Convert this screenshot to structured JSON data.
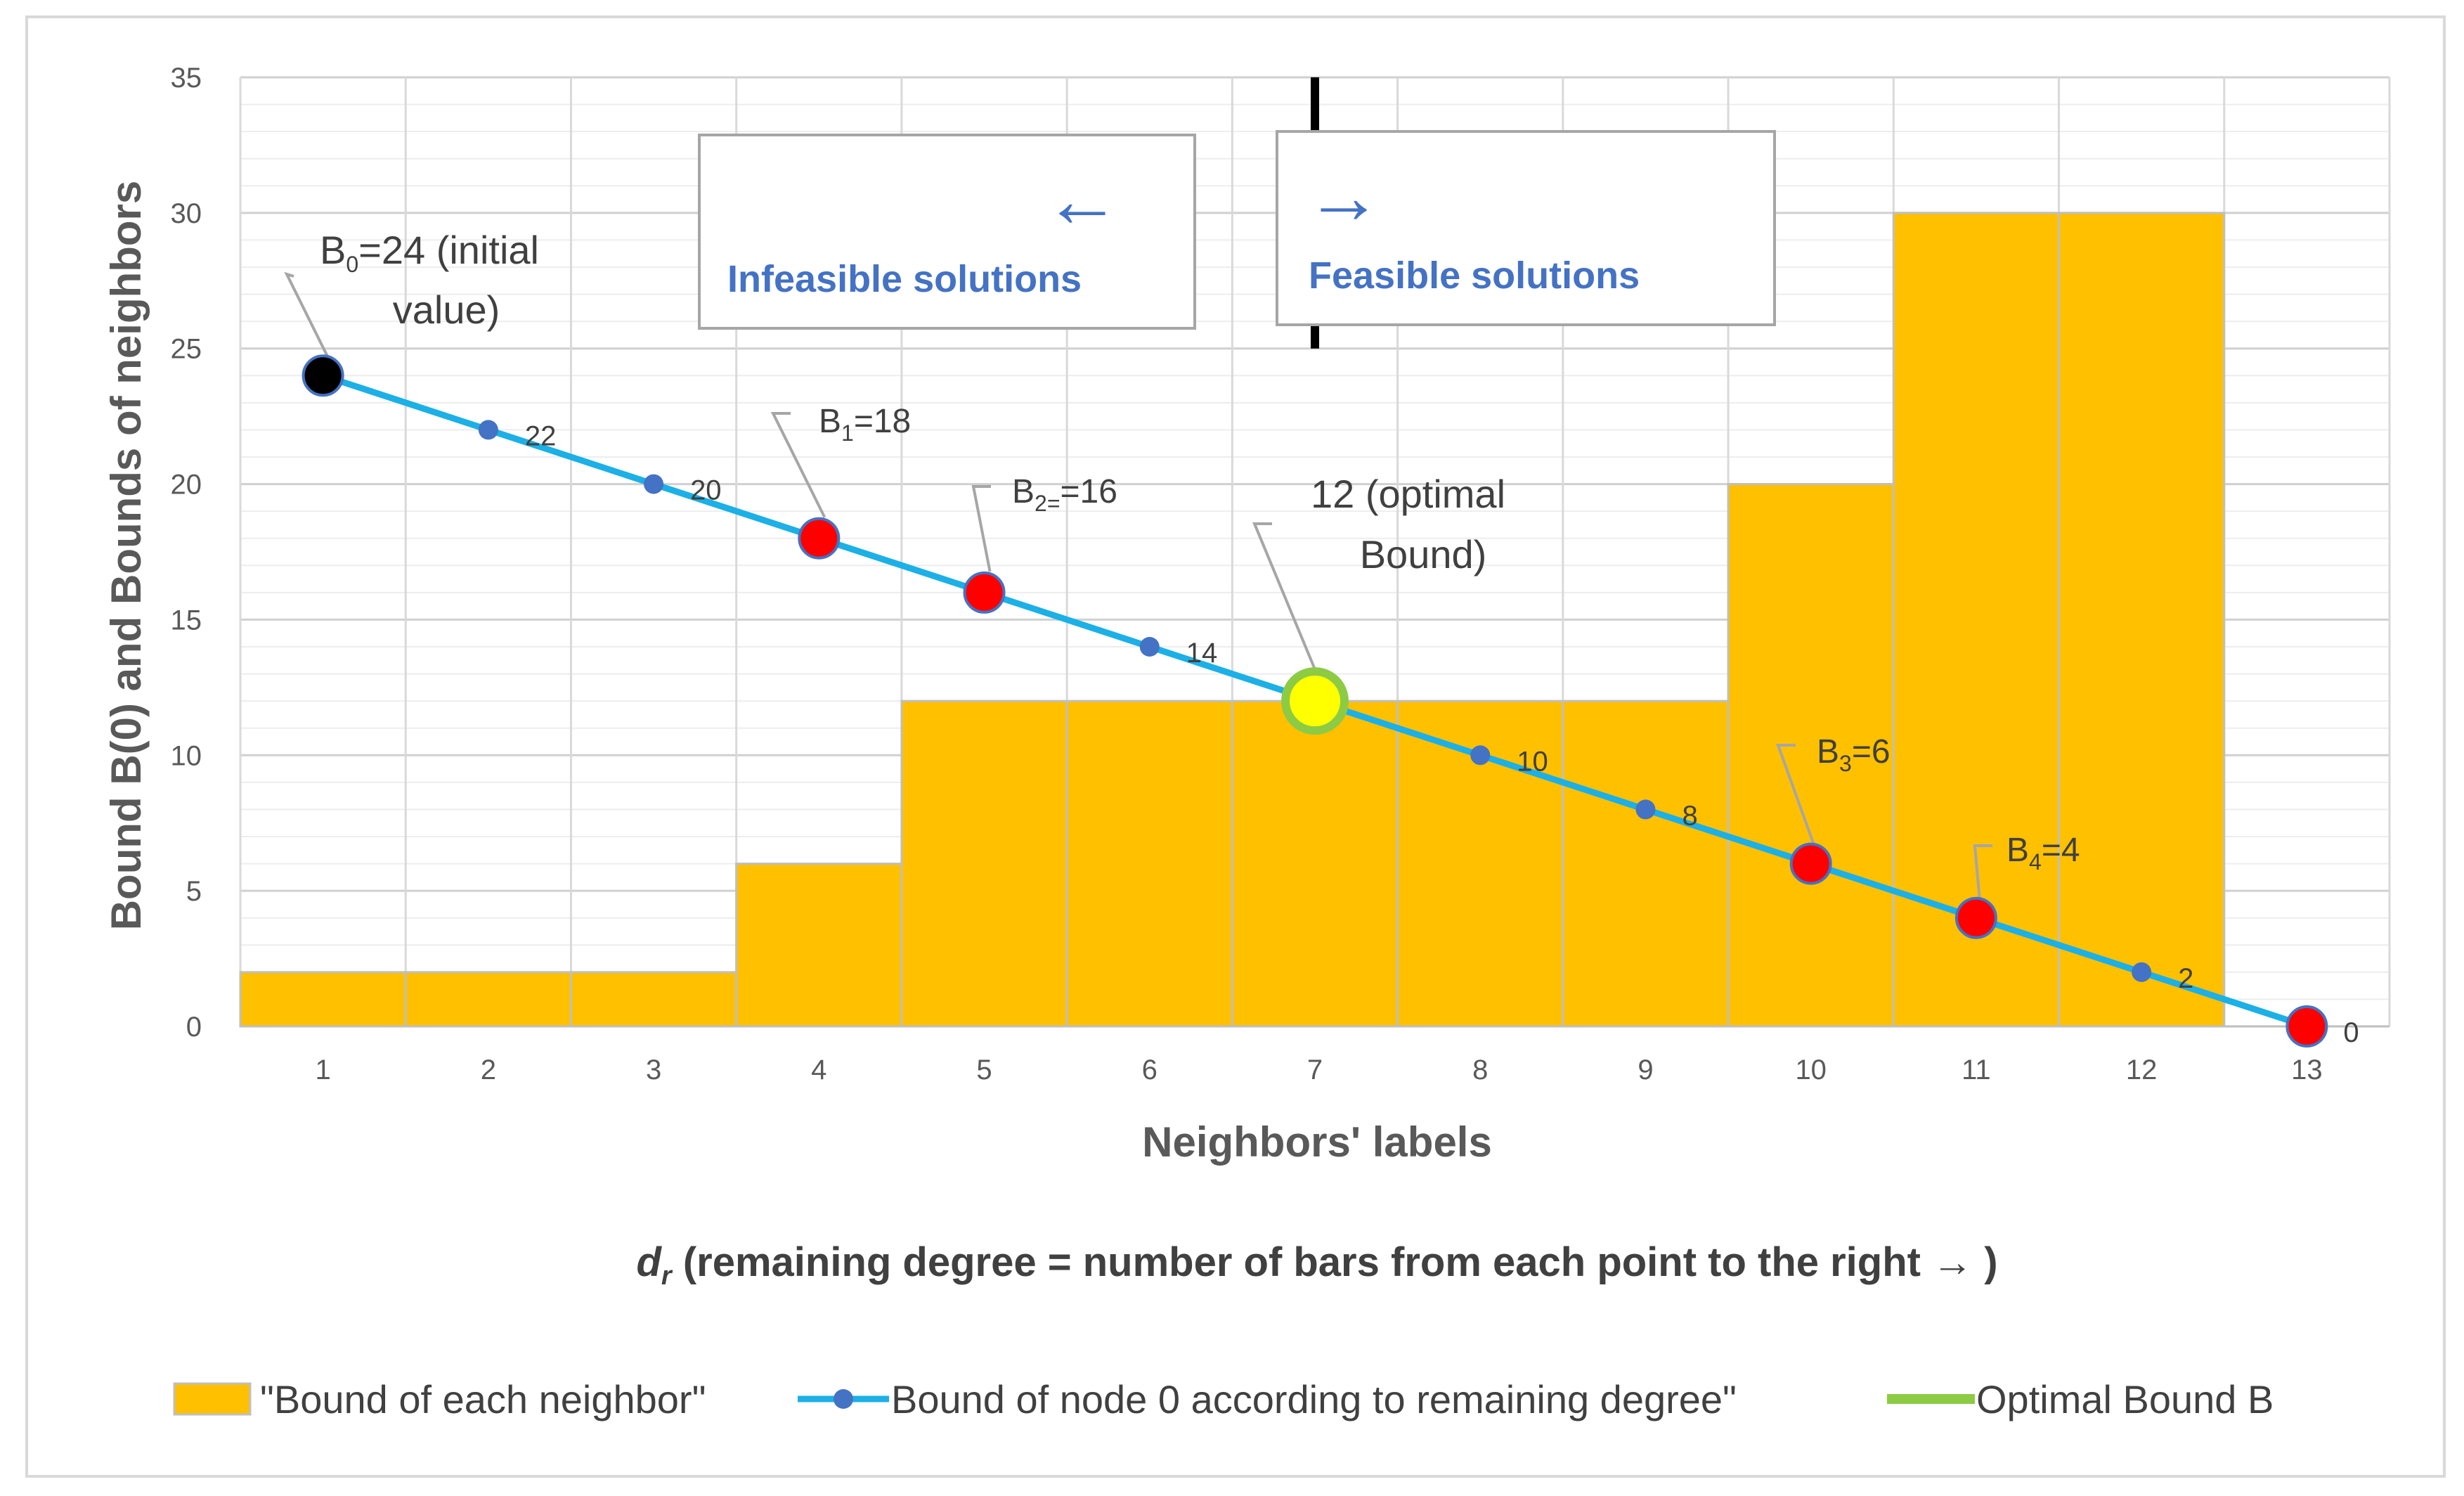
{
  "chart_data": {
    "type": "bar+line",
    "categories": [
      "1",
      "2",
      "3",
      "4",
      "5",
      "6",
      "7",
      "8",
      "9",
      "10",
      "11",
      "12"
    ],
    "x_ticks": [
      "1",
      "2",
      "3",
      "4",
      "5",
      "6",
      "7",
      "8",
      "9",
      "10",
      "11",
      "12",
      "13"
    ],
    "y_ticks": [
      "0",
      "5",
      "10",
      "15",
      "20",
      "25",
      "30",
      "35"
    ],
    "ylim": [
      0,
      35
    ],
    "ylabel": "Bound B(0) and Bounds of neighbors",
    "xlabel": "Neighbors' labels",
    "xlabel_secondary": {
      "symbol": "d",
      "subscript": "r",
      "text": " (remaining degree = number of bars from each point to the right → )"
    },
    "series": [
      {
        "name": "\"Bound of each neighbor\"",
        "kind": "bar",
        "color": "#FFC000",
        "values": [
          2,
          2,
          2,
          6,
          12,
          12,
          12,
          12,
          12,
          20,
          30,
          30
        ]
      },
      {
        "name": "Bound of node 0 according to remaining degree\"",
        "kind": "line",
        "color": "#1CB0E6",
        "marker_color": "#4472C4",
        "x": [
          0.5,
          1.5,
          2.5,
          3.5,
          4.5,
          5.5,
          6.5,
          7.5,
          8.5,
          9.5,
          10.5,
          11.5,
          12.5
        ],
        "values": [
          24,
          22,
          20,
          18,
          16,
          14,
          12,
          10,
          8,
          6,
          4,
          2,
          0
        ]
      },
      {
        "name": "Optimal Bound B",
        "kind": "point",
        "color": "#8DCB44",
        "x": [
          6.5
        ],
        "values": [
          12
        ]
      }
    ],
    "data_labels": [
      {
        "x": 1.5,
        "y": 22,
        "text": "22"
      },
      {
        "x": 2.5,
        "y": 20,
        "text": "20"
      },
      {
        "x": 5.5,
        "y": 14,
        "text": "14"
      },
      {
        "x": 7.5,
        "y": 10,
        "text": "10"
      },
      {
        "x": 8.5,
        "y": 8,
        "text": "8"
      },
      {
        "x": 11.5,
        "y": 2,
        "text": "2"
      },
      {
        "x": 12.5,
        "y": 0,
        "text": "0"
      }
    ],
    "highlight_points": [
      {
        "x": 0.5,
        "y": 24,
        "color": "#000000"
      },
      {
        "x": 3.5,
        "y": 18,
        "color": "#FF0000"
      },
      {
        "x": 4.5,
        "y": 16,
        "color": "#FF0000"
      },
      {
        "x": 9.5,
        "y": 6,
        "color": "#FF0000"
      },
      {
        "x": 10.5,
        "y": 4,
        "color": "#FF0000"
      },
      {
        "x": 12.5,
        "y": 0,
        "color": "#FF0000"
      },
      {
        "x": 6.5,
        "y": 12,
        "color": "#FFFF00"
      }
    ],
    "annotations": [
      {
        "base": "B",
        "sub": "0",
        "rest": "=24 (initial",
        "line2": "value)",
        "x": 0.5,
        "y": 24
      },
      {
        "base": "B",
        "sub": "1",
        "rest": "=18",
        "x": 3.5,
        "y": 18
      },
      {
        "base": "B",
        "sub": "2=",
        "rest": "=16",
        "x": 4.5,
        "y": 16
      },
      {
        "base": "",
        "sub": "",
        "rest": "12 (optimal",
        "line2": "Bound)",
        "x": 6.5,
        "y": 12
      },
      {
        "base": "B",
        "sub": "3",
        "rest": "=6",
        "x": 9.5,
        "y": 6
      },
      {
        "base": "B",
        "sub": "4",
        "rest": "=4",
        "x": 10.5,
        "y": 4
      }
    ],
    "regions": {
      "divider_x": 6.5,
      "left_label": "Infeasible solutions",
      "left_arrow": "←",
      "right_label": "Feasible solutions",
      "right_arrow": "→"
    },
    "grid": true,
    "legend_position": "bottom"
  }
}
